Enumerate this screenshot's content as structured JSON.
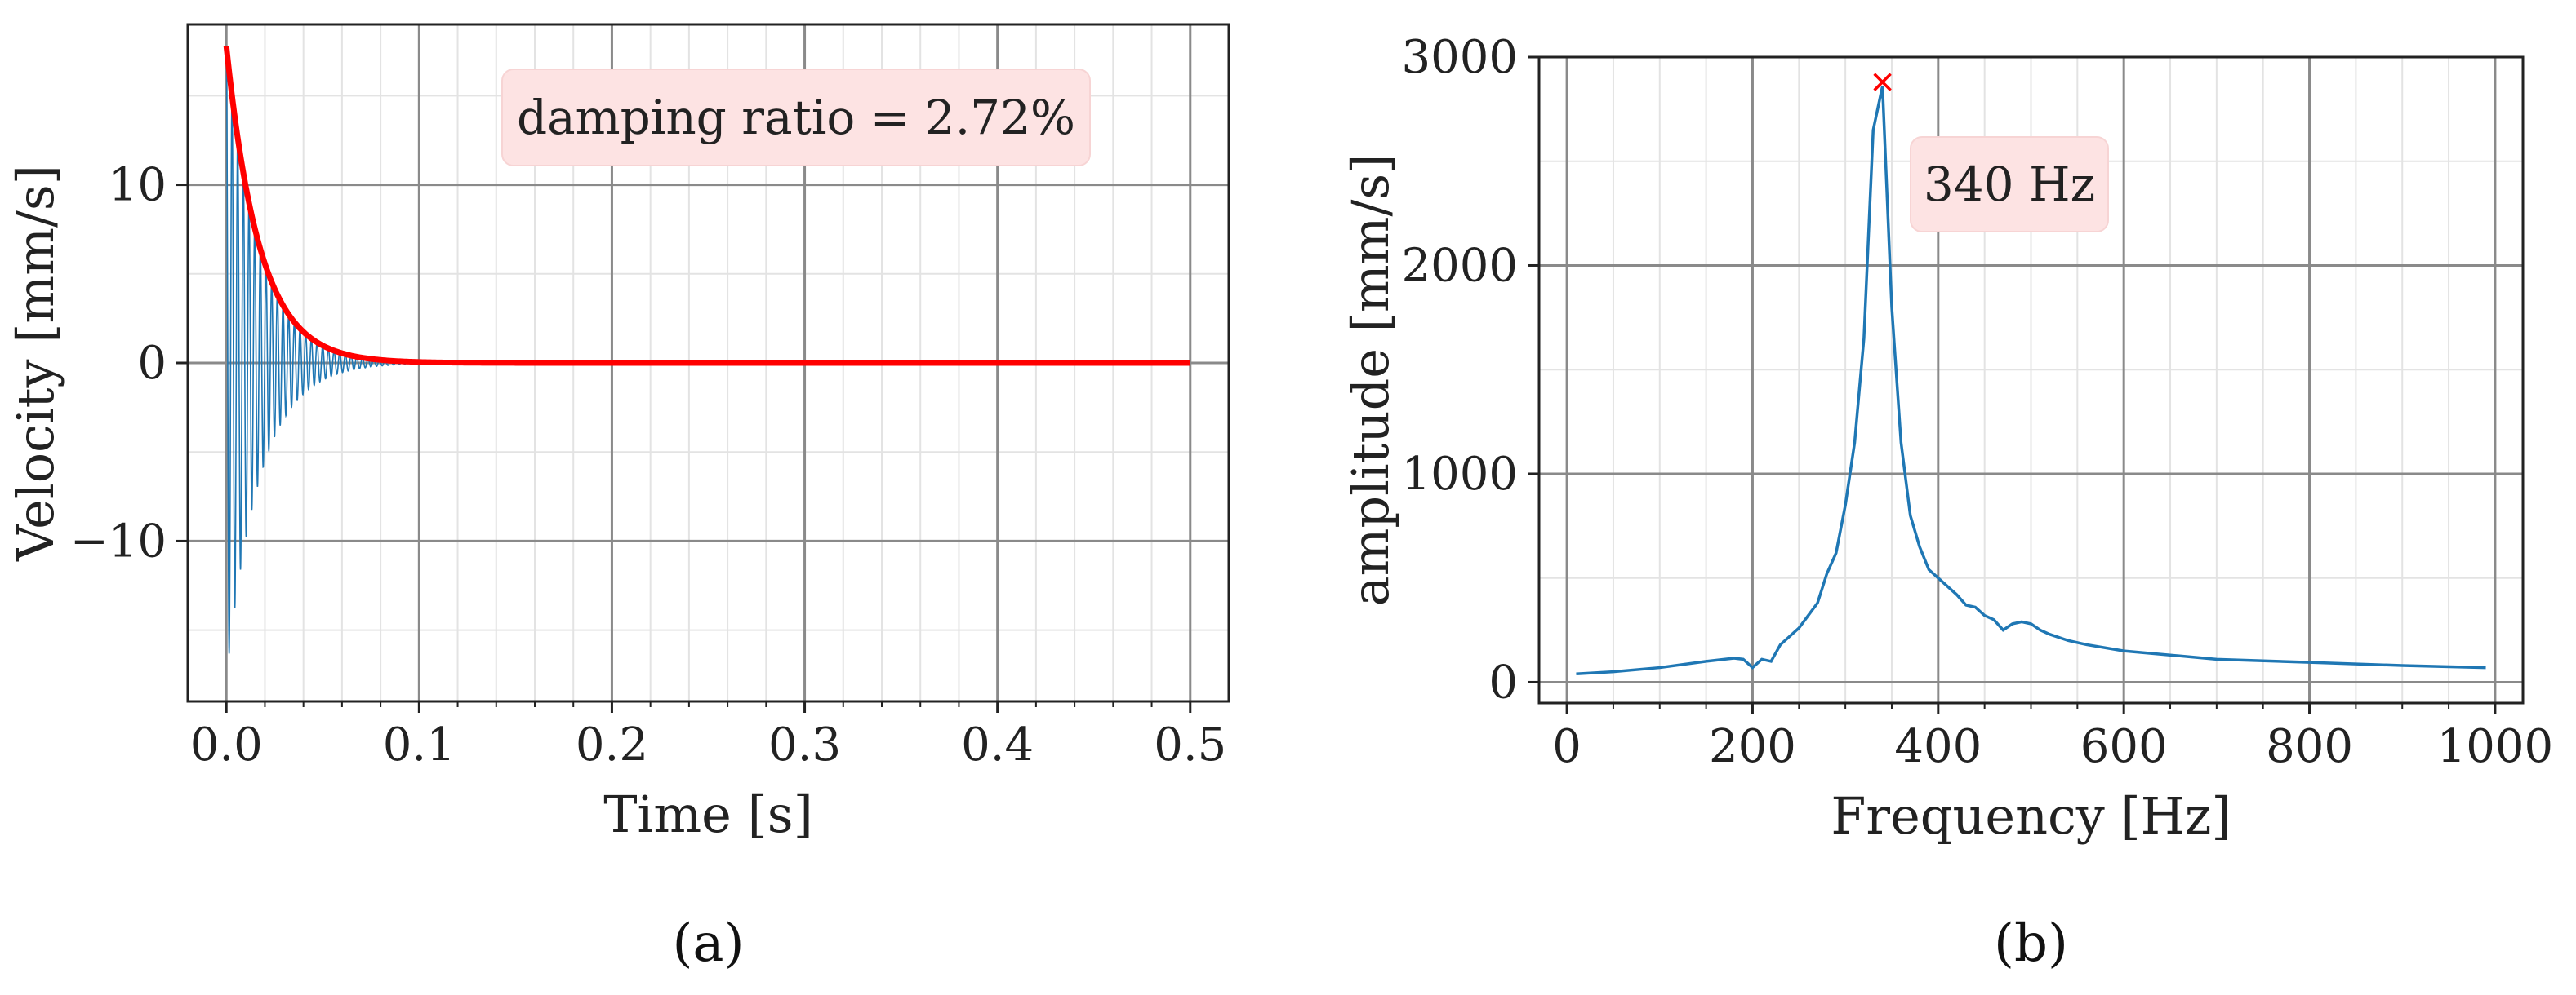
{
  "chart_data": [
    {
      "type": "line",
      "panel": "(a)",
      "xlabel": "Time [s]",
      "ylabel": "Velocity [mm/s]",
      "xlim": [
        -0.02,
        0.52
      ],
      "ylim": [
        -19,
        19
      ],
      "xticks": [
        0.0,
        0.1,
        0.2,
        0.3,
        0.4,
        0.5
      ],
      "xtick_labels": [
        "0.0",
        "0.1",
        "0.2",
        "0.3",
        "0.4",
        "0.5"
      ],
      "yticks": [
        -10,
        0,
        10
      ],
      "ytick_labels": [
        "−10",
        "0",
        "10"
      ],
      "grid": true,
      "annotation": "damping ratio = 2.72%",
      "series": [
        {
          "kind": "oscillation",
          "color": "#1f77b4",
          "frequency_hz": 340,
          "initial_amplitude": 17.8,
          "damping_ratio": 0.0272,
          "t_range": [
            0.0,
            0.5
          ]
        },
        {
          "kind": "envelope",
          "color": "#ff0000",
          "initial_amplitude": 17.8,
          "decay_rate": 58.1,
          "t_range": [
            0.0,
            0.5
          ]
        }
      ]
    },
    {
      "type": "line",
      "panel": "(b)",
      "xlabel": "Frequency [Hz]",
      "ylabel": "amplitude [mm/s]",
      "xlim": [
        -30,
        1030
      ],
      "ylim": [
        -100,
        3000
      ],
      "xticks": [
        0,
        200,
        400,
        600,
        800,
        1000
      ],
      "xtick_labels": [
        "0",
        "200",
        "400",
        "600",
        "800",
        "1000"
      ],
      "yticks": [
        0,
        1000,
        2000,
        3000
      ],
      "ytick_labels": [
        "0",
        "1000",
        "2000",
        "3000"
      ],
      "grid": true,
      "annotation": "340 Hz",
      "peak": {
        "x": 340,
        "y": 2880,
        "marker": "x",
        "color": "#ff0000"
      },
      "series": [
        {
          "color": "#1f77b4",
          "x": [
            10,
            50,
            100,
            150,
            180,
            190,
            200,
            210,
            220,
            230,
            240,
            250,
            260,
            270,
            280,
            290,
            300,
            310,
            320,
            330,
            340,
            350,
            360,
            370,
            380,
            390,
            400,
            410,
            420,
            430,
            440,
            450,
            460,
            470,
            480,
            490,
            500,
            510,
            520,
            540,
            560,
            600,
            650,
            700,
            800,
            900,
            990
          ],
          "y": [
            40,
            50,
            70,
            100,
            115,
            110,
            70,
            110,
            100,
            180,
            220,
            260,
            320,
            380,
            520,
            620,
            850,
            1150,
            1650,
            2650,
            2860,
            1800,
            1150,
            800,
            650,
            540,
            500,
            460,
            420,
            370,
            360,
            320,
            300,
            250,
            280,
            290,
            280,
            250,
            230,
            200,
            180,
            150,
            130,
            110,
            95,
            80,
            70
          ]
        }
      ]
    }
  ]
}
